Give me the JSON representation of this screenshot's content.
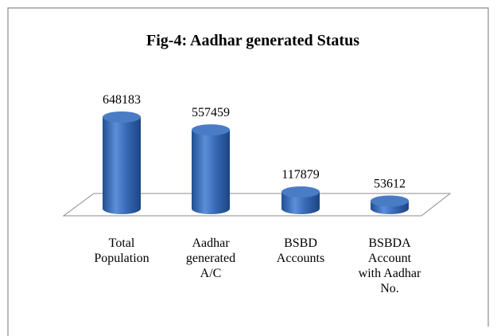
{
  "chart_data": {
    "type": "bar",
    "title": "Fig-4: Aadhar generated Status",
    "categories": [
      "Total Population",
      "Aadhar generated A/C",
      "BSBD Accounts",
      "BSBDA Account with Aadhar No."
    ],
    "values": [
      648183,
      557459,
      117879,
      53612
    ],
    "color": "#3a6cb8"
  }
}
